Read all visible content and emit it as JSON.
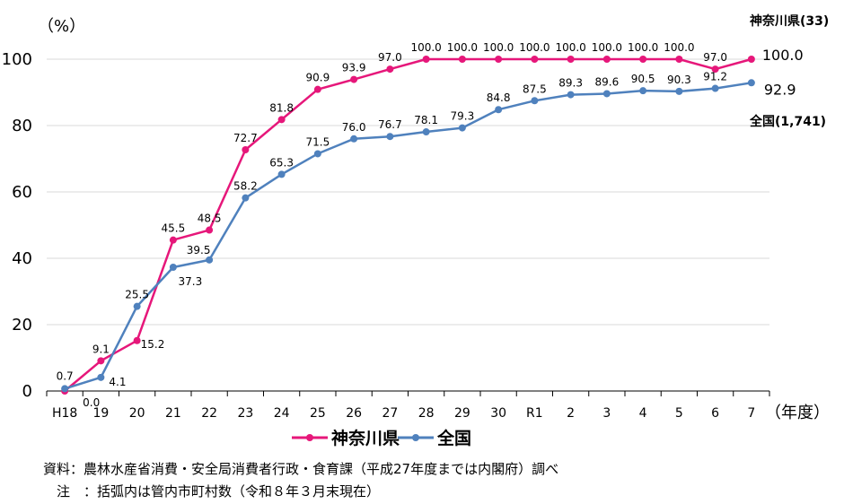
{
  "chart_data": {
    "type": "line",
    "y_unit_label": "（%）",
    "x_unit_label": "（年度）",
    "ylim": [
      0,
      100
    ],
    "yticks": [
      0,
      20,
      40,
      60,
      80,
      100
    ],
    "categories": [
      "H18",
      "19",
      "20",
      "21",
      "22",
      "23",
      "24",
      "25",
      "26",
      "27",
      "28",
      "29",
      "30",
      "R1",
      "2",
      "3",
      "4",
      "5",
      "6",
      "7"
    ],
    "series": [
      {
        "name": "神奈川県",
        "color": "#E6177A",
        "values": [
          0.0,
          9.1,
          15.2,
          45.5,
          48.5,
          72.7,
          81.8,
          90.9,
          93.9,
          97.0,
          100.0,
          100.0,
          100.0,
          100.0,
          100.0,
          100.0,
          100.0,
          100.0,
          97.0,
          100.0
        ],
        "labels": [
          "0.0",
          "9.1",
          "15.2",
          "45.5",
          "48.5",
          "72.7",
          "81.8",
          "90.9",
          "93.9",
          "97.0",
          "100.0",
          "100.0",
          "100.0",
          "100.0",
          "100.0",
          "100.0",
          "100.0",
          "100.0",
          "97.0",
          "100.0"
        ],
        "end_annotation": "神奈川県(33)"
      },
      {
        "name": "全国",
        "color": "#4F81BD",
        "values": [
          0.7,
          4.1,
          25.5,
          37.3,
          39.5,
          58.2,
          65.3,
          71.5,
          76.0,
          76.7,
          78.1,
          79.3,
          84.8,
          87.5,
          89.3,
          89.6,
          90.5,
          90.3,
          91.2,
          92.9
        ],
        "labels": [
          "0.7",
          "4.1",
          "25.5",
          "37.3",
          "39.5",
          "58.2",
          "65.3",
          "71.5",
          "76.0",
          "76.7",
          "78.1",
          "79.3",
          "84.8",
          "87.5",
          "89.3",
          "89.6",
          "90.5",
          "90.3",
          "91.2",
          "92.9"
        ],
        "end_annotation": "全国(1,741)"
      }
    ],
    "legend_position": "bottom"
  },
  "notes": {
    "source": "資料：農林水産省消費・安全局消費者行政・食育課（平成27年度までは内閣府）調べ",
    "note": "　注　：括弧内は管内市町村数（令和８年３月末現在）"
  }
}
